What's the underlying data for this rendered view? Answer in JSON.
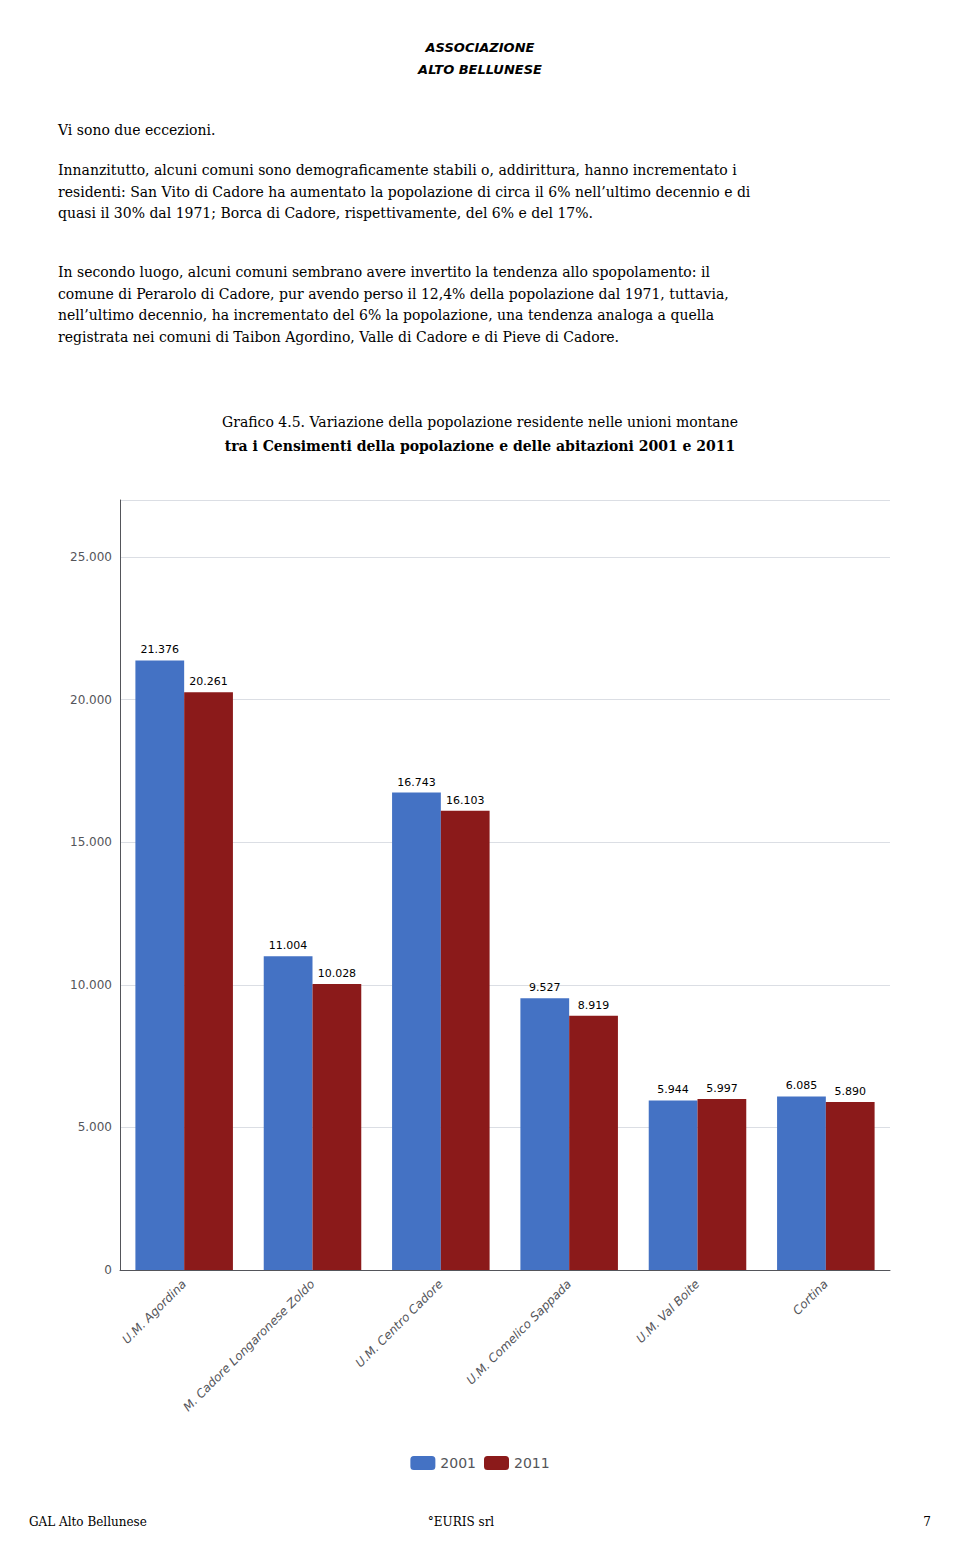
{
  "chart_data": {
    "type": "bar",
    "title": "Grafico 4.5. Variazione della popolazione residente nelle unioni montane",
    "subtitle": "tra i Censimenti della popolazione e delle abitazioni 2001 e 2011",
    "categories": [
      "U.M. Agordina",
      "M. Cadore Longaronese Zoldo",
      "U.M. Centro Cadore",
      "U.M. Comelico Sappada",
      "U.M. Val Boite",
      "Cortina"
    ],
    "series": [
      {
        "name": "2001",
        "color": "#4472C4",
        "values": [
          21376,
          11004,
          16743,
          9527,
          5944,
          6085
        ],
        "value_labels": [
          "21.376",
          "11.004",
          "16.743",
          "9.527",
          "5.944",
          "6.085"
        ]
      },
      {
        "name": "2011",
        "color": "#8B1A1A",
        "values": [
          20261,
          10028,
          16103,
          8919,
          5997,
          5890
        ],
        "value_labels": [
          "20.261",
          "10.028",
          "16.103",
          "8.919",
          "5.997",
          "5.890"
        ]
      }
    ],
    "ylim": [
      0,
      27000
    ],
    "yticks": [
      0,
      {
        "value": 5000,
        "label": "5.000"
      },
      {
        "value": 10000,
        "label": "10.000"
      },
      {
        "value": 15000,
        "label": "15.000"
      },
      {
        "value": 20000,
        "label": "20.000"
      },
      {
        "value": 25000,
        "label": "25.000"
      }
    ],
    "grid": true,
    "legend": "bottom",
    "data_labels": true,
    "annotations": [
      "ASSOCIAZIONE",
      "ALTO BELLUNESE",
      "Vi sono due eccezioni.",
      "Innanzitutto, alcuni comuni sono demograficamente stabili o, addirittura, hanno incrementato i\nresidenti: San Vito di Cadore ha aumentato la popolazione di circa il 6% nell’ultimo decennio e di\nquasi il 30% dal 1971; Borca di Cadore, rispettivamente, del 6% e del 17%.",
      "In secondo luogo, alcuni comuni sembrano avere invertito la tendenza allo spopolamento: il\ncomune di Perarolo di Cadore, pur avendo perso il 12,4% della popolazione dal 1971, tuttavia,\nnell’ultimo decennio, ha incrementato del 6% la popolazione, una tendenza analoga a quella\nregistrata nei comuni di Taibon Agordino, Valle di Cadore e di Pieve di Cadore.",
      "GAL Alto Bellunese",
      "°EURIS srl",
      "7"
    ]
  }
}
